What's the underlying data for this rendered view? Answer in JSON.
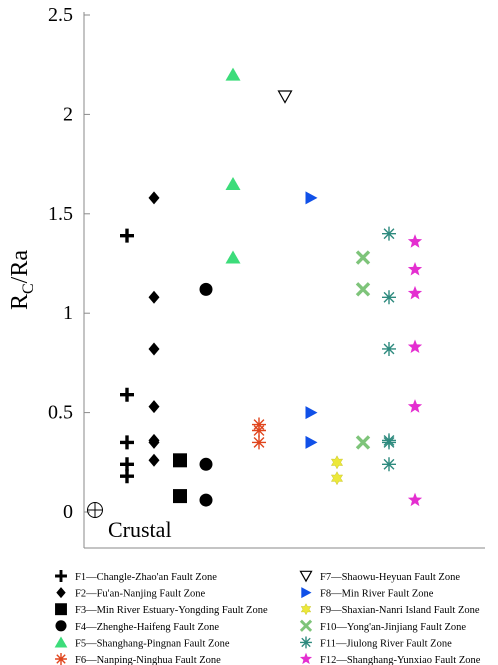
{
  "chart_data": {
    "type": "scatter",
    "ylabel": {
      "main": "R",
      "sub": "C",
      "rest": "/Ra"
    },
    "ylim": [
      0,
      2.5
    ],
    "yticks": [
      0,
      0.5,
      1,
      1.5,
      2,
      2.5
    ],
    "ytick_labels": [
      "0",
      "0.5",
      "1",
      "1.5",
      "2",
      "2.5"
    ],
    "xaxis_visible": false,
    "grid": false,
    "legend_position": "bottom",
    "annotation": {
      "text": "Crustal",
      "value": 0.01,
      "symbol": "crosshair-circle"
    },
    "series": [
      {
        "name": "F1—Changle-Zhao'an Fault Zone",
        "marker": "plus",
        "color": "#000000",
        "x": 1,
        "y": [
          1.39,
          0.59,
          0.35,
          0.24,
          0.18
        ]
      },
      {
        "name": "F2—Fu'an-Nanjing Fault Zone",
        "marker": "diamond",
        "color": "#000000",
        "x": 2,
        "y": [
          1.58,
          1.08,
          0.82,
          0.53,
          0.36,
          0.35,
          0.26
        ]
      },
      {
        "name": "F3—Min River Estuary-Yongding Fault Zone",
        "marker": "square",
        "color": "#000000",
        "x": 3,
        "y": [
          0.26,
          0.08
        ]
      },
      {
        "name": "F4—Zhenghe-Haifeng Fault Zone",
        "marker": "circle",
        "color": "#000000",
        "x": 4,
        "y": [
          1.12,
          0.24,
          0.06
        ]
      },
      {
        "name": "F5—Shanghang-Pingnan Fault Zone",
        "marker": "triangle-up",
        "color": "#3cdc7a",
        "x": 5,
        "y": [
          2.2,
          1.65,
          1.28
        ]
      },
      {
        "name": "F6—Nanping-Ninghua Fault Zone",
        "marker": "asterisk",
        "color": "#e0441c",
        "x": 6,
        "y": [
          0.44,
          0.41,
          0.35
        ]
      },
      {
        "name": "F7—Shaowu-Heyuan Fault Zone",
        "marker": "triangle-down-open",
        "color": "#000000",
        "x": 7,
        "y": [
          2.09
        ]
      },
      {
        "name": "F8—Min River Fault Zone",
        "marker": "triangle-right",
        "color": "#1050e8",
        "x": 8,
        "y": [
          1.58,
          0.5,
          0.35
        ]
      },
      {
        "name": "F9—Shaxian-Nanri Island Fault Zone",
        "marker": "hexagram",
        "color": "#ece83a",
        "x": 9,
        "y": [
          0.25,
          0.17
        ]
      },
      {
        "name": "F10—Yong'an-Jinjiang Fault Zone",
        "marker": "x-thick",
        "color": "#7ec47a",
        "x": 10,
        "y": [
          1.28,
          1.12,
          0.35
        ]
      },
      {
        "name": "F11—Jiulong River Fault Zone",
        "marker": "asterisk",
        "color": "#2e8a7e",
        "x": 11,
        "y": [
          1.4,
          1.08,
          0.82,
          0.36,
          0.35,
          0.24
        ]
      },
      {
        "name": "F12—Shanghang-Yunxiao Fault Zone",
        "marker": "pentagram",
        "color": "#e42ed0",
        "x": 12,
        "y": [
          1.36,
          1.22,
          1.1,
          0.83,
          0.53,
          0.06
        ]
      }
    ]
  }
}
